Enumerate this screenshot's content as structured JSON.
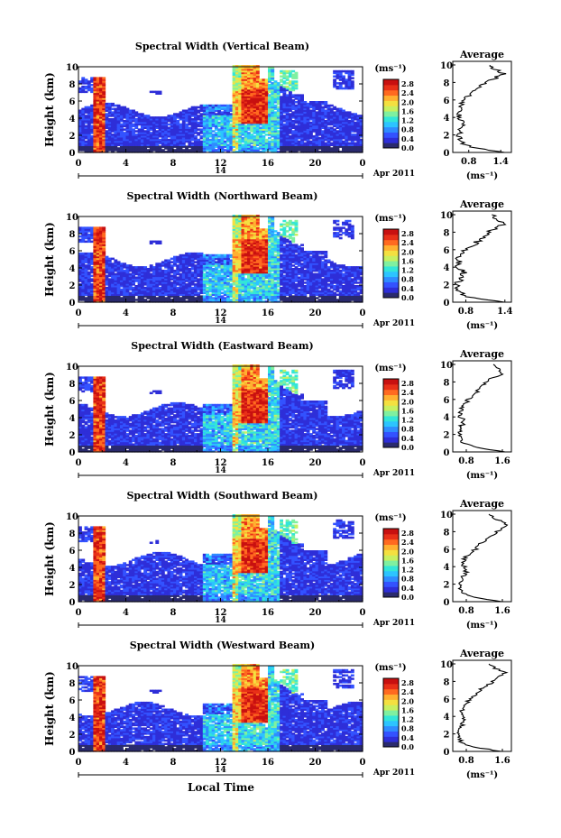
{
  "figure": {
    "x_axis_title": "Local Time",
    "y_axis_title": "Height (km)",
    "date_label": "14",
    "month_label": "Apr 2011",
    "unit_label": "(ms⁻¹)",
    "avg_title": "Average",
    "avg_xlabel": "(ms⁻¹)",
    "colors": [
      "#2a2a6e",
      "#2e2ed8",
      "#3352ff",
      "#2f8cff",
      "#2cc4ff",
      "#33e6d8",
      "#7ff0a0",
      "#c8f060",
      "#f4e040",
      "#ffb030",
      "#ff6a20",
      "#e83018",
      "#c81010"
    ]
  },
  "chart_data": [
    {
      "type": "heatmap",
      "title": "Spectral Width (Vertical Beam)",
      "x_ticks": [
        "0",
        "4",
        "8",
        "12",
        "16",
        "20",
        "0"
      ],
      "x_range": [
        0,
        24
      ],
      "y_ticks": [
        "0",
        "2",
        "4",
        "6",
        "8",
        "10"
      ],
      "y_range": [
        0,
        10
      ],
      "colorbar_ticks": [
        "0.0",
        "0.4",
        "0.8",
        "1.2",
        "1.6",
        "2.0",
        "2.4",
        "2.8"
      ],
      "colorbar_range": [
        0,
        3.0
      ],
      "avg_profile": {
        "x_ticks": [
          "0.8",
          "1.4"
        ],
        "x_range": [
          0.5,
          1.6
        ],
        "heights_km": [
          0,
          0.5,
          1,
          1.5,
          2,
          2.5,
          3,
          3.5,
          4,
          4.5,
          5,
          5.5,
          6,
          6.5,
          7,
          7.5,
          8,
          8.5,
          9,
          9.5,
          10
        ],
        "values": [
          1.5,
          0.9,
          0.7,
          0.65,
          0.62,
          0.65,
          0.68,
          0.72,
          0.62,
          0.6,
          0.62,
          0.68,
          0.72,
          0.8,
          0.88,
          1.0,
          1.15,
          1.3,
          1.45,
          1.3,
          1.2
        ]
      }
    },
    {
      "type": "heatmap",
      "title": "Spectral Width (Northward Beam)",
      "x_ticks": [
        "0",
        "4",
        "8",
        "12",
        "16",
        "20",
        "0"
      ],
      "x_range": [
        0,
        24
      ],
      "y_ticks": [
        "0",
        "2",
        "4",
        "6",
        "8",
        "10"
      ],
      "y_range": [
        0,
        10
      ],
      "colorbar_ticks": [
        "0.0",
        "0.4",
        "0.8",
        "1.2",
        "1.6",
        "2.0",
        "2.4",
        "2.8"
      ],
      "colorbar_range": [
        0,
        3.0
      ],
      "avg_profile": {
        "x_ticks": [
          "0.8",
          "1.4"
        ],
        "x_range": [
          0.6,
          1.5
        ],
        "heights_km": [
          0,
          0.5,
          1,
          1.5,
          2,
          2.5,
          3,
          3.5,
          4,
          4.5,
          5,
          5.5,
          6,
          6.5,
          7,
          7.5,
          8,
          8.5,
          9,
          9.5,
          10
        ],
        "values": [
          1.4,
          0.9,
          0.72,
          0.7,
          0.66,
          0.7,
          0.72,
          0.78,
          0.7,
          0.68,
          0.7,
          0.75,
          0.8,
          0.9,
          1.0,
          1.05,
          1.15,
          1.25,
          1.4,
          1.3,
          1.2
        ]
      }
    },
    {
      "type": "heatmap",
      "title": "Spectral Width (Eastward Beam)",
      "x_ticks": [
        "0",
        "4",
        "8",
        "12",
        "16",
        "20",
        "0"
      ],
      "x_range": [
        0,
        24
      ],
      "y_ticks": [
        "0",
        "2",
        "4",
        "6",
        "8",
        "10"
      ],
      "y_range": [
        0,
        10
      ],
      "colorbar_ticks": [
        "0.0",
        "0.4",
        "0.8",
        "1.2",
        "1.6",
        "2.0",
        "2.4",
        "2.8"
      ],
      "colorbar_range": [
        0,
        3.0
      ],
      "avg_profile": {
        "x_ticks": [
          "0.8",
          "1.6"
        ],
        "x_range": [
          0.5,
          1.8
        ],
        "heights_km": [
          0,
          0.5,
          1,
          1.5,
          2,
          2.5,
          3,
          3.5,
          4,
          4.5,
          5,
          5.5,
          6,
          6.5,
          7,
          7.5,
          8,
          8.5,
          9,
          9.5,
          10
        ],
        "values": [
          1.7,
          1.0,
          0.75,
          0.7,
          0.65,
          0.68,
          0.7,
          0.75,
          0.68,
          0.65,
          0.7,
          0.78,
          0.85,
          0.95,
          1.05,
          1.15,
          1.25,
          1.4,
          1.6,
          1.5,
          1.4
        ]
      }
    },
    {
      "type": "heatmap",
      "title": "Spectral Width (Southward Beam)",
      "x_ticks": [
        "0",
        "4",
        "8",
        "12",
        "16",
        "20",
        "0"
      ],
      "x_range": [
        0,
        24
      ],
      "y_ticks": [
        "0",
        "2",
        "4",
        "6",
        "8",
        "10"
      ],
      "y_range": [
        0,
        10
      ],
      "colorbar_ticks": [
        "0.0",
        "0.4",
        "0.8",
        "1.2",
        "1.6",
        "2.0",
        "2.4",
        "2.8"
      ],
      "colorbar_range": [
        0,
        3.0
      ],
      "avg_profile": {
        "x_ticks": [
          "0.8",
          "1.6"
        ],
        "x_range": [
          0.5,
          1.8
        ],
        "heights_km": [
          0,
          0.5,
          1,
          1.5,
          2,
          2.5,
          3,
          3.5,
          4,
          4.5,
          5,
          5.5,
          6,
          6.5,
          7,
          7.5,
          8,
          8.5,
          9,
          9.5,
          10
        ],
        "values": [
          1.6,
          0.95,
          0.72,
          0.68,
          0.65,
          0.7,
          0.75,
          0.8,
          0.75,
          0.72,
          0.78,
          0.88,
          1.0,
          1.1,
          1.2,
          1.35,
          1.5,
          1.6,
          1.7,
          1.45,
          1.3
        ]
      }
    },
    {
      "type": "heatmap",
      "title": "Spectral Width (Westward Beam)",
      "x_ticks": [
        "0",
        "4",
        "8",
        "12",
        "16",
        "20",
        "0"
      ],
      "x_range": [
        0,
        24
      ],
      "y_ticks": [
        "0",
        "2",
        "4",
        "6",
        "8",
        "10"
      ],
      "y_range": [
        0,
        10
      ],
      "colorbar_ticks": [
        "0.0",
        "0.4",
        "0.8",
        "1.2",
        "1.6",
        "2.0",
        "2.4",
        "2.8"
      ],
      "colorbar_range": [
        0,
        3.0
      ],
      "avg_profile": {
        "x_ticks": [
          "0.8",
          "1.6"
        ],
        "x_range": [
          0.5,
          1.8
        ],
        "heights_km": [
          0,
          0.5,
          1,
          1.5,
          2,
          2.5,
          3,
          3.5,
          4,
          4.5,
          5,
          5.5,
          6,
          6.5,
          7,
          7.5,
          8,
          8.5,
          9,
          9.5,
          10
        ],
        "values": [
          1.6,
          0.95,
          0.7,
          0.66,
          0.62,
          0.66,
          0.7,
          0.75,
          0.7,
          0.68,
          0.72,
          0.8,
          0.9,
          1.0,
          1.1,
          1.25,
          1.4,
          1.5,
          1.65,
          1.45,
          1.3
        ]
      }
    }
  ]
}
